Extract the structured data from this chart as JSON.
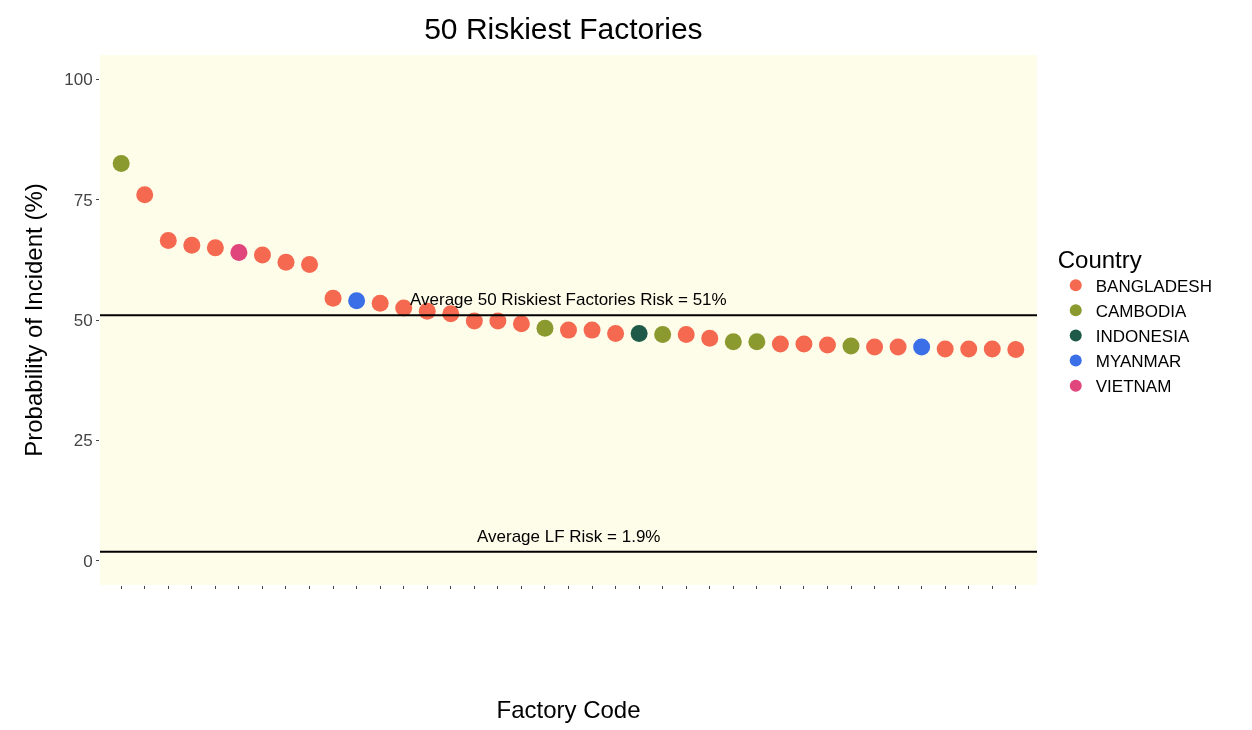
{
  "chart_data": {
    "type": "scatter",
    "title": "50 Riskiest Factories",
    "xlabel": "Factory Code",
    "ylabel": "Probability of Incident (%)",
    "legend_title": "Country",
    "legend": "right",
    "marker": "circle",
    "grid": false,
    "categories": [
      null,
      null,
      null,
      null,
      null,
      null,
      null,
      null,
      null,
      null,
      null,
      null,
      null,
      null,
      null,
      null,
      null,
      null,
      null,
      null,
      null,
      null,
      null,
      null,
      null,
      null,
      null,
      null,
      null,
      null,
      null,
      null,
      null,
      null,
      null,
      null,
      null,
      null,
      null
    ],
    "ylim": [
      -5,
      105
    ],
    "yticks": [
      0,
      25,
      50,
      75,
      100
    ],
    "series": [
      {
        "name": "BANGLADESH",
        "color": "#f4694f",
        "values": [
          null,
          76,
          66.5,
          65.5,
          65,
          null,
          63.5,
          62,
          61.5,
          54.5,
          null,
          53.5,
          52.5,
          51.8,
          51.3,
          49.8,
          49.8,
          49.2,
          null,
          47.9,
          47.9,
          47.2,
          null,
          null,
          47,
          46.2,
          null,
          null,
          45,
          45,
          44.8,
          null,
          44.4,
          44.4,
          null,
          44,
          44,
          44,
          43.9
        ]
      },
      {
        "name": "CAMBODIA",
        "color": "#8a9a2f",
        "values": [
          82.5,
          null,
          null,
          null,
          null,
          null,
          null,
          null,
          null,
          null,
          null,
          null,
          null,
          null,
          null,
          null,
          null,
          null,
          48.3,
          null,
          null,
          null,
          null,
          47,
          null,
          null,
          45.5,
          45.5,
          null,
          null,
          null,
          44.6,
          null,
          null,
          null,
          null,
          null,
          null,
          null
        ]
      },
      {
        "name": "INDONESIA",
        "color": "#1f5a49",
        "values": [
          null,
          null,
          null,
          null,
          null,
          null,
          null,
          null,
          null,
          null,
          null,
          null,
          null,
          null,
          null,
          null,
          null,
          null,
          null,
          null,
          null,
          null,
          47.2,
          null,
          null,
          null,
          null,
          null,
          null,
          null,
          null,
          null,
          null,
          null,
          null,
          null,
          null,
          null,
          null
        ]
      },
      {
        "name": "MYANMAR",
        "color": "#3a6fe8",
        "values": [
          null,
          null,
          null,
          null,
          null,
          null,
          null,
          null,
          null,
          null,
          54,
          null,
          null,
          null,
          null,
          null,
          null,
          null,
          null,
          null,
          null,
          null,
          null,
          null,
          null,
          null,
          null,
          null,
          null,
          null,
          null,
          null,
          null,
          null,
          44.4,
          null,
          null,
          null,
          null
        ]
      },
      {
        "name": "VIETNAM",
        "color": "#e0457b",
        "values": [
          null,
          null,
          null,
          null,
          null,
          64,
          null,
          null,
          null,
          null,
          null,
          null,
          null,
          null,
          null,
          null,
          null,
          null,
          null,
          null,
          null,
          null,
          null,
          null,
          null,
          null,
          null,
          null,
          null,
          null,
          null,
          null,
          null,
          null,
          null,
          null,
          null,
          null,
          null
        ]
      }
    ],
    "ref_lines": [
      {
        "axis": "y",
        "value": 51,
        "label": "Average 50 Riskiest Factories Risk = 51%",
        "color": "#000000"
      },
      {
        "axis": "y",
        "value": 1.9,
        "label": "Average LF Risk = 1.9%",
        "color": "#000000"
      }
    ]
  }
}
